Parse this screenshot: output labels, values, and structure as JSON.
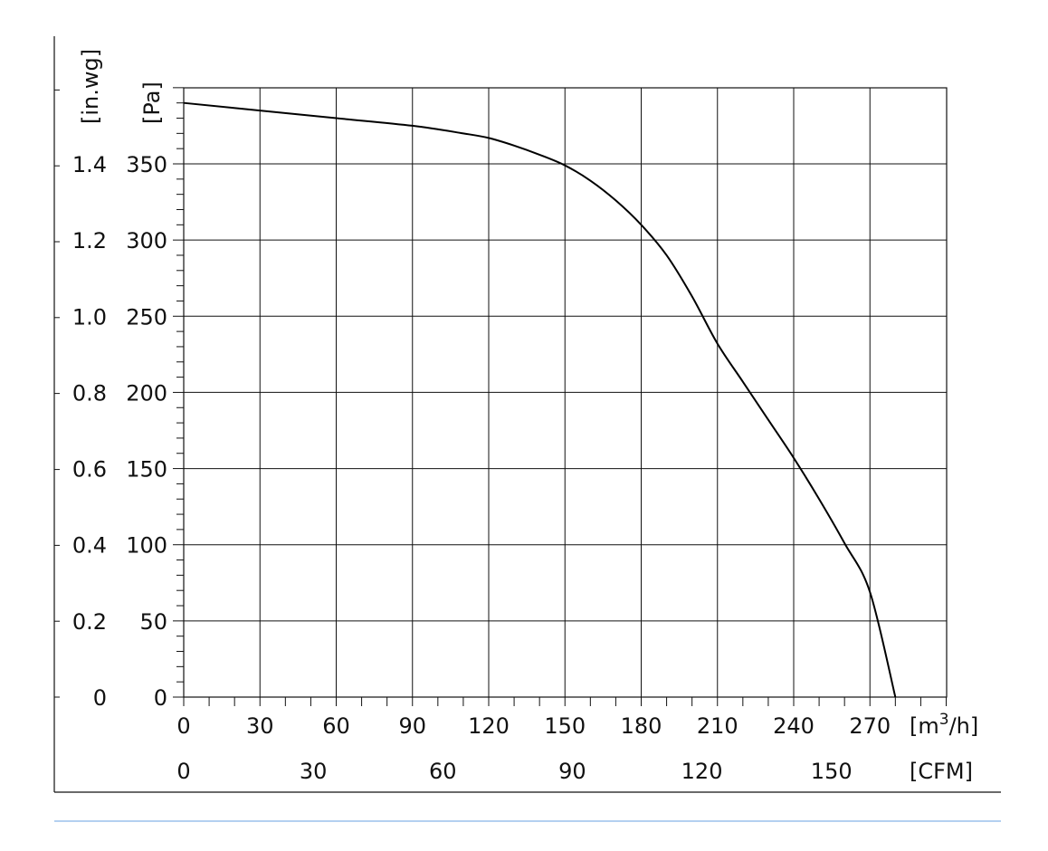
{
  "chart_data": {
    "type": "line",
    "title": "",
    "x_axis_primary": {
      "label": "[m",
      "label_sup": "3",
      "label_tail": "/h]",
      "range": [
        0,
        300
      ],
      "ticks": [
        0,
        30,
        60,
        90,
        120,
        150,
        180,
        210,
        240,
        270
      ]
    },
    "x_axis_secondary": {
      "label": "[CFM]",
      "ticks": [
        0,
        30,
        60,
        90,
        120,
        150
      ]
    },
    "y_axis_primary": {
      "label": "[Pa]",
      "range": [
        0,
        400
      ],
      "ticks": [
        0,
        50,
        100,
        150,
        200,
        250,
        300,
        350
      ]
    },
    "y_axis_secondary": {
      "label": "[in.wg]",
      "ticks": [
        "0",
        "0.2",
        "0.4",
        "0.6",
        "0.8",
        "1.0",
        "1.2",
        "1.4"
      ]
    },
    "grid": true,
    "series": [
      {
        "x": [
          0,
          30,
          60,
          90,
          110,
          120,
          130,
          140,
          150,
          160,
          170,
          180,
          190,
          200,
          210,
          220,
          230,
          240,
          250,
          260,
          270,
          280
        ],
        "y": [
          390,
          385,
          380,
          375,
          370,
          367,
          362,
          356,
          349,
          339,
          326,
          310,
          290,
          263,
          232,
          207,
          182,
          157,
          130,
          101,
          69,
          0
        ]
      }
    ]
  }
}
